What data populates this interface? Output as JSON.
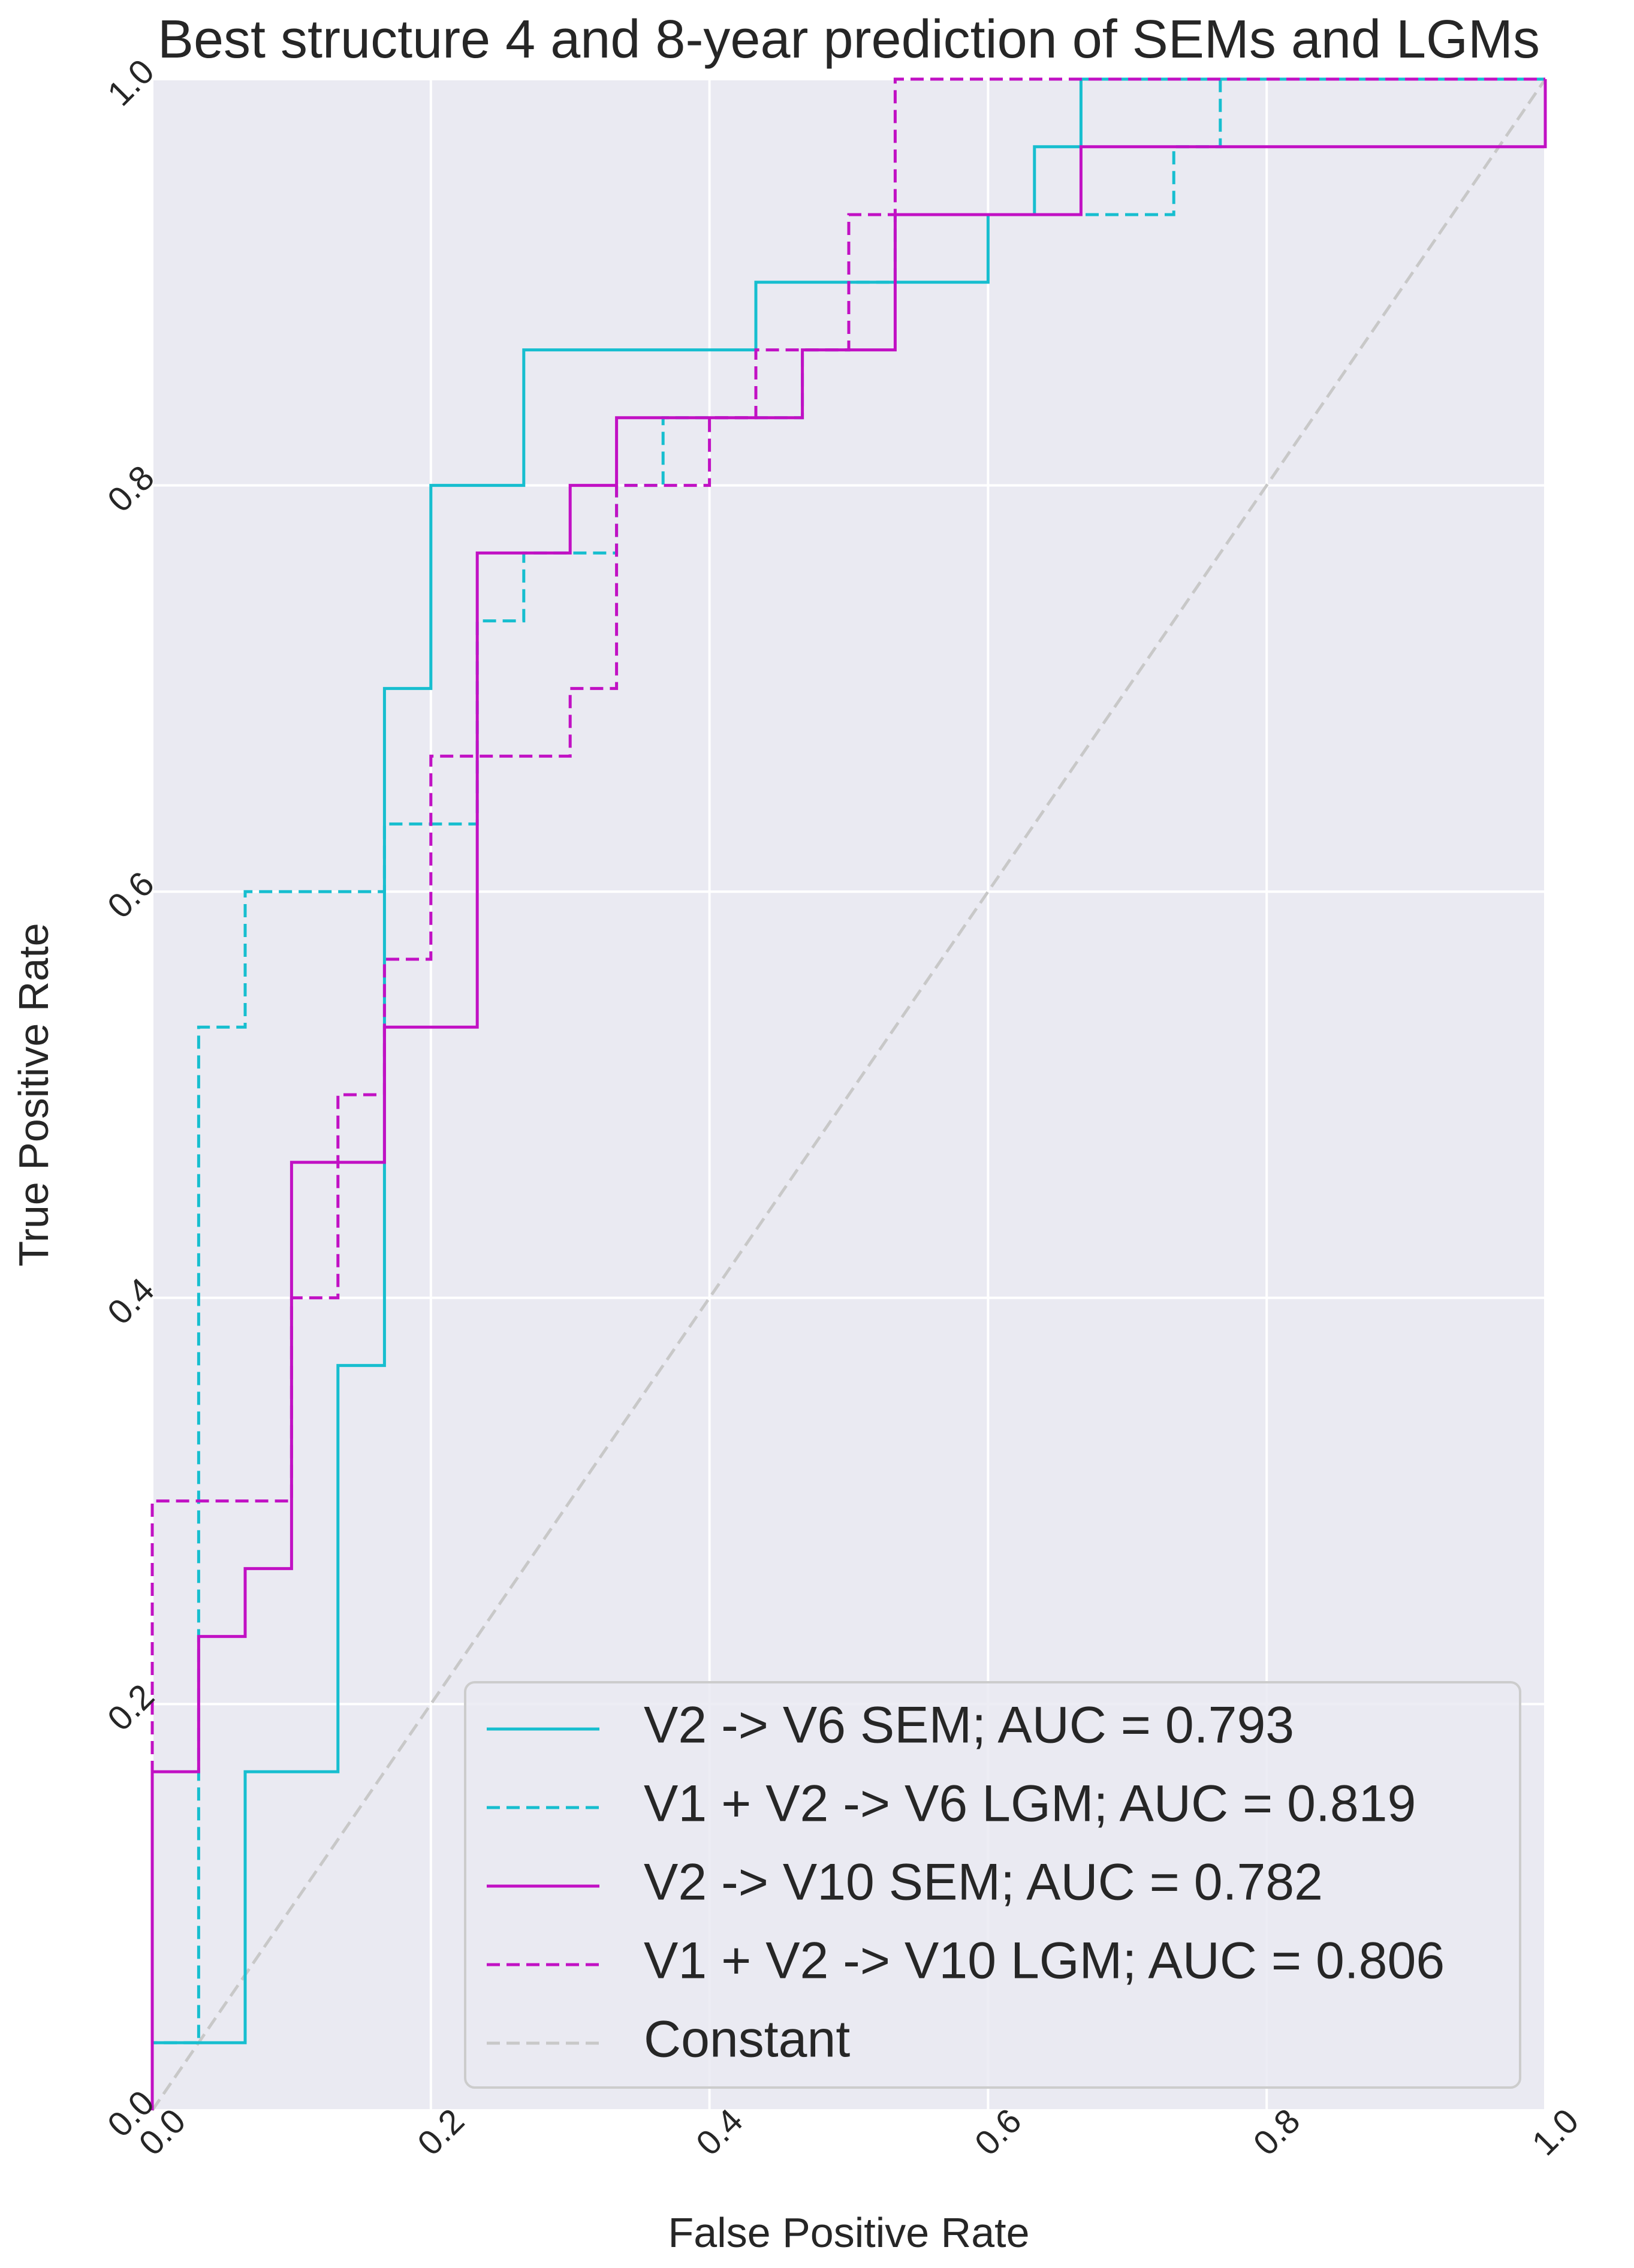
{
  "chart_data": {
    "type": "line",
    "title": "Best structure 4 and 8-year prediction of SEMs and LGMs",
    "xlabel": "False Positive Rate",
    "ylabel": "True Positive Rate",
    "xlim": [
      0.0,
      1.0
    ],
    "ylim": [
      0.0,
      1.0
    ],
    "xticks": [
      0.0,
      0.2,
      0.4,
      0.6,
      0.8,
      1.0
    ],
    "yticks": [
      0.0,
      0.2,
      0.4,
      0.6,
      0.8,
      1.0
    ],
    "xtick_labels": [
      "0.0",
      "0.2",
      "0.4",
      "0.6",
      "0.8",
      "1.0"
    ],
    "ytick_labels": [
      "0.0",
      "0.2",
      "0.4",
      "0.6",
      "0.8",
      "1.0"
    ],
    "tick_label_rotation_deg": 45,
    "grid": true,
    "background_color": "#eaeaf2",
    "grid_color": "#ffffff",
    "legend_position": "lower right",
    "series": [
      {
        "name": "V2 -> V6 SEM; AUC = 0.793",
        "color": "#17becf",
        "linestyle": "solid",
        "x": [
          0.0,
          0.0,
          0.0333,
          0.0667,
          0.0667,
          0.1333,
          0.1333,
          0.1667,
          0.1667,
          0.2,
          0.2,
          0.2667,
          0.2667,
          0.4333,
          0.4333,
          0.6,
          0.6,
          0.6333,
          0.6333,
          0.6667,
          0.6667,
          1.0
        ],
        "y": [
          0.0,
          0.0333,
          0.0333,
          0.0333,
          0.1667,
          0.1667,
          0.3667,
          0.3667,
          0.7,
          0.7,
          0.8,
          0.8,
          0.8667,
          0.8667,
          0.9,
          0.9,
          0.9333,
          0.9333,
          0.9667,
          0.9667,
          1.0,
          1.0
        ]
      },
      {
        "name": "V1 + V2 -> V6 LGM; AUC = 0.819",
        "color": "#17becf",
        "linestyle": "dashed",
        "x": [
          0.0,
          0.0,
          0.0333,
          0.0333,
          0.0667,
          0.0667,
          0.1667,
          0.1667,
          0.2333,
          0.2333,
          0.2667,
          0.2667,
          0.3333,
          0.3333,
          0.3667,
          0.3667,
          0.4667,
          0.4667,
          0.5,
          0.5,
          0.5333,
          0.5333,
          0.6667,
          0.6667,
          0.7333,
          0.7333,
          0.7667,
          0.7667,
          1.0
        ],
        "y": [
          0.0,
          0.0333,
          0.0333,
          0.5333,
          0.5333,
          0.6,
          0.6,
          0.6333,
          0.6333,
          0.7333,
          0.7333,
          0.7667,
          0.7667,
          0.8,
          0.8,
          0.8333,
          0.8333,
          0.8667,
          0.8667,
          0.9,
          0.9,
          0.9333,
          0.9333,
          0.9333,
          0.9333,
          0.9667,
          0.9667,
          1.0,
          1.0
        ]
      },
      {
        "name": "V2 -> V10 SEM; AUC = 0.782",
        "color": "#c111c4",
        "linestyle": "solid",
        "x": [
          0.0,
          0.0,
          0.0333,
          0.0333,
          0.0667,
          0.0667,
          0.1,
          0.1,
          0.1667,
          0.1667,
          0.2333,
          0.2333,
          0.3,
          0.3,
          0.3333,
          0.3333,
          0.4667,
          0.4667,
          0.5333,
          0.5333,
          0.6667,
          0.6667,
          1.0,
          1.0
        ],
        "y": [
          0.0,
          0.1667,
          0.1667,
          0.2333,
          0.2333,
          0.2667,
          0.2667,
          0.4667,
          0.4667,
          0.5333,
          0.5333,
          0.7667,
          0.7667,
          0.8,
          0.8,
          0.8333,
          0.8333,
          0.8667,
          0.8667,
          0.9333,
          0.9333,
          0.9667,
          0.9667,
          1.0
        ]
      },
      {
        "name": "V1 + V2 -> V10 LGM; AUC = 0.806",
        "color": "#c111c4",
        "linestyle": "dashed",
        "x": [
          0.0,
          0.0,
          0.1,
          0.1,
          0.1333,
          0.1333,
          0.1667,
          0.1667,
          0.2,
          0.2,
          0.3,
          0.3,
          0.3333,
          0.3333,
          0.4,
          0.4,
          0.4333,
          0.4333,
          0.5,
          0.5,
          0.5333,
          0.5333,
          1.0
        ],
        "y": [
          0.0,
          0.3,
          0.3,
          0.4,
          0.4,
          0.5,
          0.5,
          0.5667,
          0.5667,
          0.6667,
          0.6667,
          0.7,
          0.7,
          0.8,
          0.8,
          0.8333,
          0.8333,
          0.8667,
          0.8667,
          0.9333,
          0.9333,
          1.0,
          1.0
        ]
      },
      {
        "name": "Constant",
        "color": "#c8c8c8",
        "linestyle": "dashed",
        "x": [
          0.0,
          1.0
        ],
        "y": [
          0.0,
          1.0
        ]
      }
    ]
  }
}
